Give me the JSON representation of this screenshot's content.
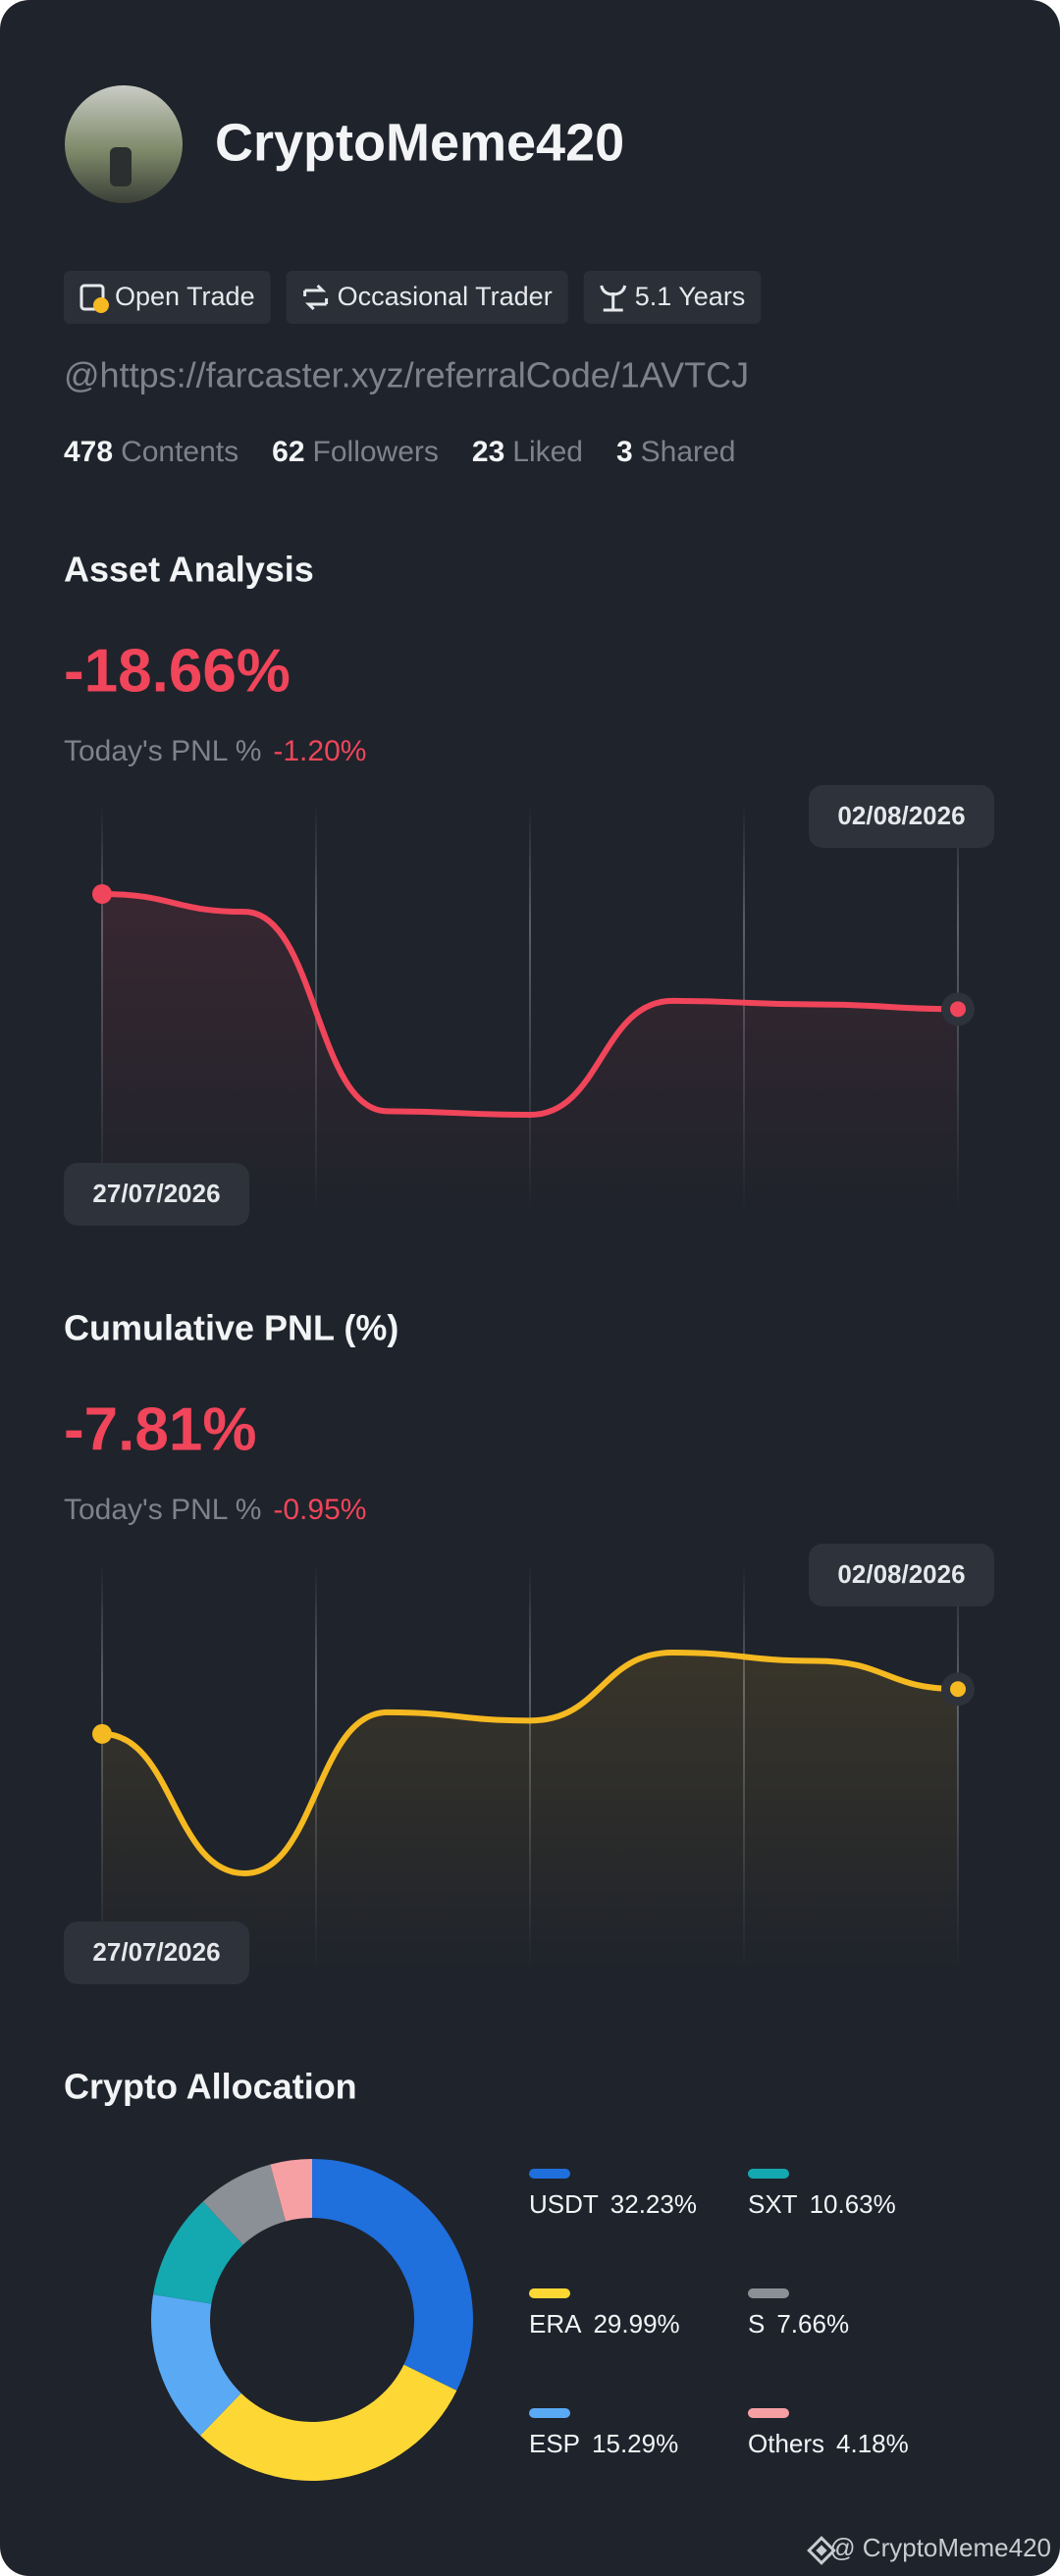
{
  "profile": {
    "name": "CryptoMeme420",
    "tags": [
      "Open Trade",
      "Occasional Trader",
      "5.1 Years"
    ],
    "link": "@https://farcaster.xyz/referralCode/1AVTCJ",
    "stats": [
      {
        "count": 478,
        "label": "Contents"
      },
      {
        "count": 62,
        "label": "Followers"
      },
      {
        "count": 23,
        "label": "Liked"
      },
      {
        "count": 3,
        "label": "Shared"
      }
    ]
  },
  "chart_data": [
    {
      "type": "line",
      "title": "Asset Analysis",
      "headline": "-18.66%",
      "today_label": "Today's PNL %",
      "today_value": "-1.20%",
      "categories": [
        "27/07/2026",
        null,
        null,
        null,
        null,
        null,
        "02/08/2026"
      ],
      "series": [
        {
          "color": "#f0455a",
          "values": [
            -6.0,
            -7.5,
            -24.3,
            -24.6,
            -15.0,
            -15.3,
            -15.7
          ]
        }
      ]
    },
    {
      "type": "line",
      "title": "Cumulative PNL (%)",
      "headline": "-7.81%",
      "today_label": "Today's PNL %",
      "today_value": "-0.95%",
      "categories": [
        "27/07/2026",
        null,
        null,
        null,
        null,
        null,
        "02/08/2026"
      ],
      "series": [
        {
          "color": "#f5b921",
          "values": [
            -4.9,
            -13.3,
            -3.6,
            -4.1,
            0,
            -0.5,
            -2.2
          ]
        }
      ]
    },
    {
      "type": "donut",
      "title": "Crypto Allocation",
      "categories": [
        "USDT",
        "ERA",
        "ESP",
        "SXT",
        "S",
        "Others"
      ],
      "values": [
        32.23,
        29.99,
        15.29,
        10.63,
        7.66,
        4.18
      ],
      "value_labels": [
        "32.23%",
        "29.99%",
        "15.29%",
        "10.63%",
        "7.66%",
        "4.18%"
      ],
      "colors": [
        "#1f6fdc",
        "#fdd835",
        "#5aa9f5",
        "#14a8b0",
        "#8a9096",
        "#f6a0a4"
      ]
    }
  ],
  "footer": "@ CryptoMeme420"
}
